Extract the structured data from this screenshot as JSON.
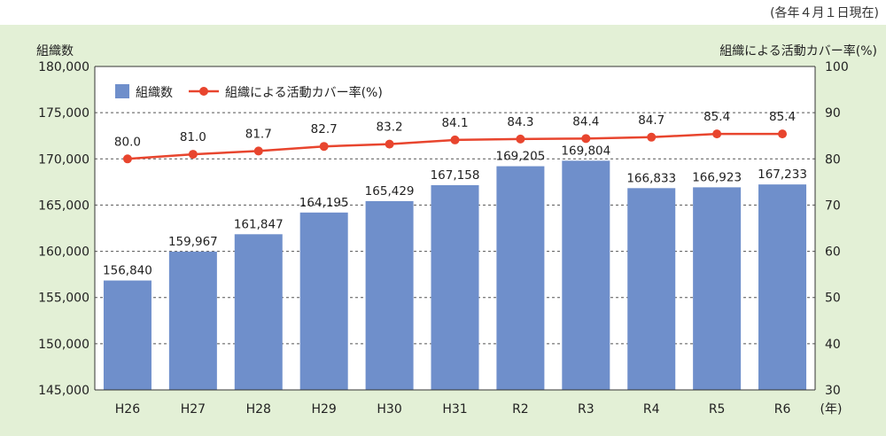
{
  "note": "(各年４月１日現在)",
  "chart_data": {
    "type": "bar",
    "categories": [
      "H26",
      "H27",
      "H28",
      "H29",
      "H30",
      "H31",
      "R2",
      "R3",
      "R4",
      "R5",
      "R6"
    ],
    "x_unit": "(年)",
    "left_axis_title": "組織数",
    "right_axis_title": "組織による活動カバー率(%)",
    "ylim_left": [
      145000,
      180000
    ],
    "ylim_right": [
      30,
      100
    ],
    "left_ticks": [
      "145,000",
      "150,000",
      "155,000",
      "160,000",
      "165,000",
      "170,000",
      "175,000",
      "180,000"
    ],
    "right_ticks": [
      "30",
      "40",
      "50",
      "60",
      "70",
      "80",
      "90",
      "100"
    ],
    "grid": "dashed horizontal",
    "legend_position": "top-left",
    "series": [
      {
        "name": "組織数",
        "type": "bar",
        "axis": "left",
        "color": "#6f8fcb",
        "values": [
          156840,
          159967,
          161847,
          164195,
          165429,
          167158,
          169205,
          169804,
          166833,
          166923,
          167233
        ],
        "labels": [
          "156,840",
          "159,967",
          "161,847",
          "164,195",
          "165,429",
          "167,158",
          "169,205",
          "169,804",
          "166,833",
          "166,923",
          "167,233"
        ]
      },
      {
        "name": "組織による活動カバー率(%)",
        "type": "line",
        "axis": "right",
        "color": "#e8452e",
        "values": [
          80.0,
          81.0,
          81.7,
          82.7,
          83.2,
          84.1,
          84.3,
          84.4,
          84.7,
          85.4,
          85.4
        ],
        "labels": [
          "80.0",
          "81.0",
          "81.7",
          "82.7",
          "83.2",
          "84.1",
          "84.3",
          "84.4",
          "84.7",
          "85.4",
          "85.4"
        ]
      }
    ]
  }
}
